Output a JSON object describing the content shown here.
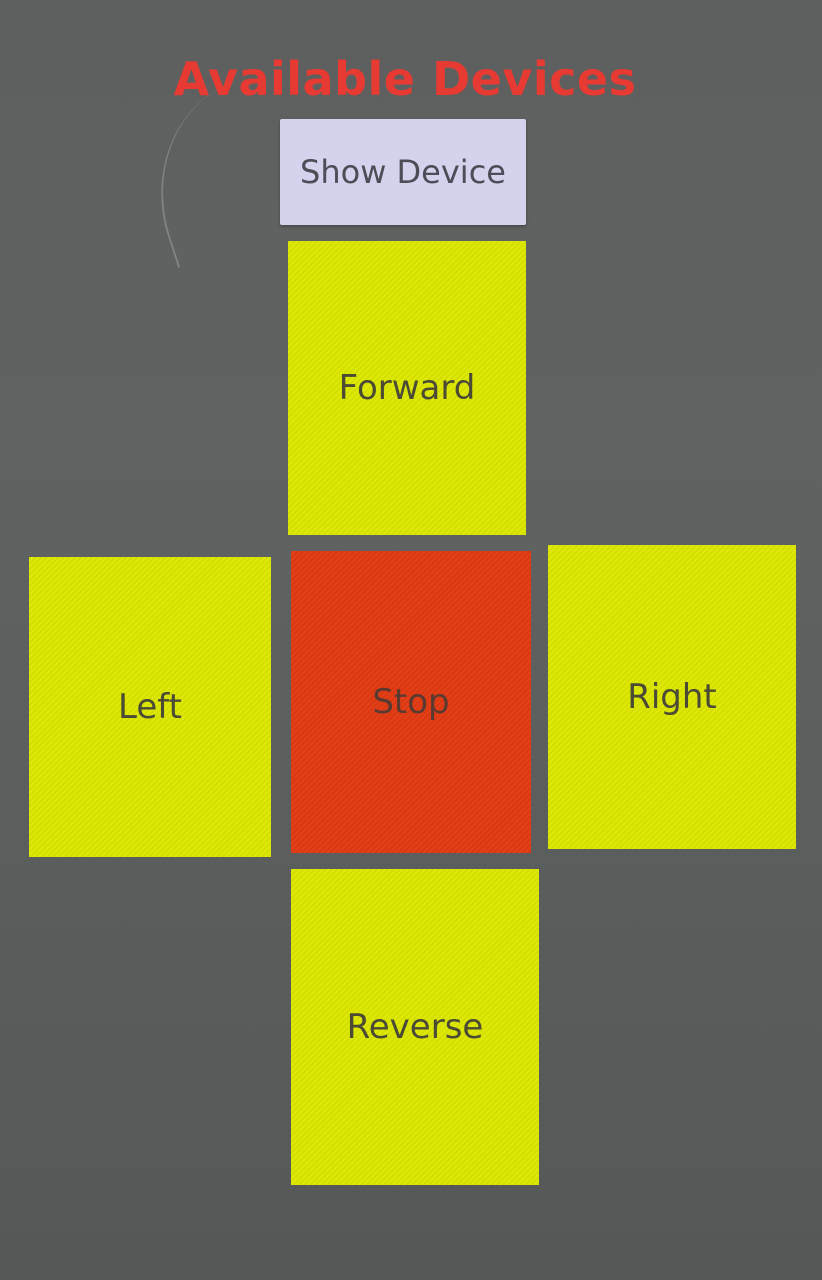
{
  "header": {
    "title": "Available Devices"
  },
  "actions": {
    "show_device_label": "Show Device"
  },
  "controls": {
    "forward": "Forward",
    "left": "Left",
    "stop": "Stop",
    "right": "Right",
    "reverse": "Reverse"
  },
  "colors": {
    "title": "#e63a32",
    "button_bg": "#d4d3ee",
    "direction_pad": "#dde800",
    "stop_pad": "#e23a12",
    "background": "#5e6160"
  }
}
